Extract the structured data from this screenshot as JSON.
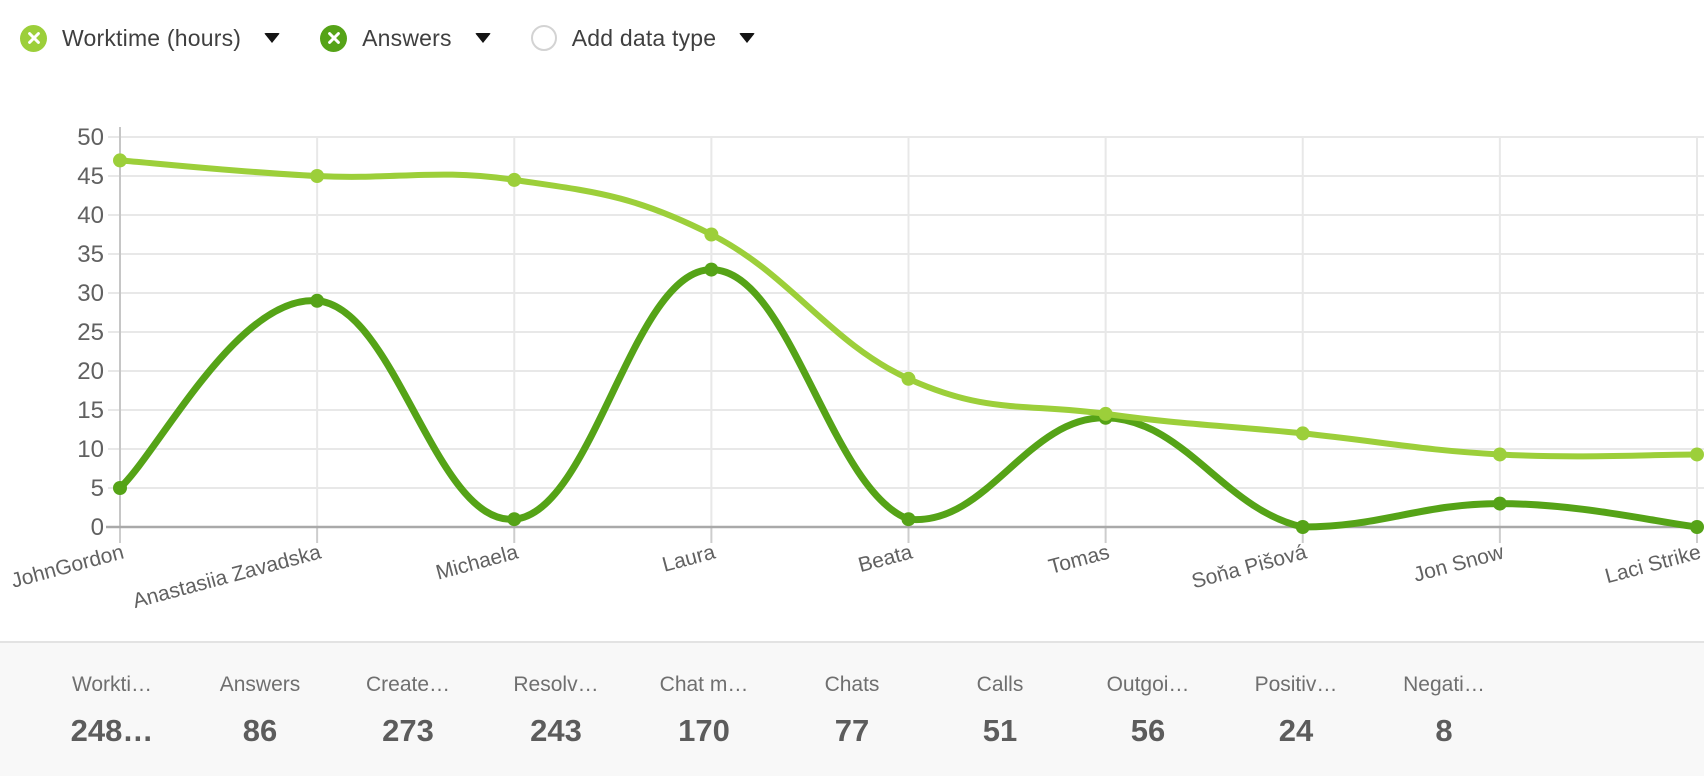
{
  "legend": {
    "items": [
      {
        "label": "Worktime (hours)",
        "icon": "circle-x",
        "color": "#9CCF3A"
      },
      {
        "label": "Answers",
        "icon": "circle-x",
        "color": "#55A317"
      },
      {
        "label": "Add data type",
        "icon": "circle-outline",
        "color": "#ffffff"
      }
    ]
  },
  "chart_data": {
    "type": "line",
    "categories": [
      "JohnGordon",
      "Anastasiia Zavadska",
      "Michaela",
      "Laura",
      "Beata",
      "Tomas",
      "Soňa Pišová",
      "Jon Snow",
      "Laci Strike"
    ],
    "series": [
      {
        "name": "Worktime (hours)",
        "color": "#9CCF3A",
        "values": [
          47,
          45,
          44.5,
          37.5,
          19,
          14.5,
          12,
          9.3,
          9.3
        ]
      },
      {
        "name": "Answers",
        "color": "#55A317",
        "values": [
          5,
          29,
          1,
          33,
          1,
          14,
          0,
          3,
          0
        ]
      }
    ],
    "title": "",
    "xlabel": "",
    "ylabel": "",
    "ylim": [
      0,
      50
    ],
    "ytick_step": 5,
    "grid": true,
    "smooth": true,
    "xlabel_rotation": -15,
    "legend_position": "top-left",
    "colors": {
      "gridline": "#e8e8e8",
      "axis_line": "#a9a9a9",
      "y_axis_line": "#c6c6c6",
      "tick": "#cdcdcd",
      "tick_text": "#616161"
    }
  },
  "stats": {
    "items": [
      {
        "label": "Workti…",
        "value": "248…"
      },
      {
        "label": "Answers",
        "value": "86"
      },
      {
        "label": "Create…",
        "value": "273"
      },
      {
        "label": "Resolv…",
        "value": "243"
      },
      {
        "label": "Chat m…",
        "value": "170"
      },
      {
        "label": "Chats",
        "value": "77"
      },
      {
        "label": "Calls",
        "value": "51"
      },
      {
        "label": "Outgoi…",
        "value": "56"
      },
      {
        "label": "Positiv…",
        "value": "24"
      },
      {
        "label": "Negati…",
        "value": "8"
      }
    ]
  }
}
